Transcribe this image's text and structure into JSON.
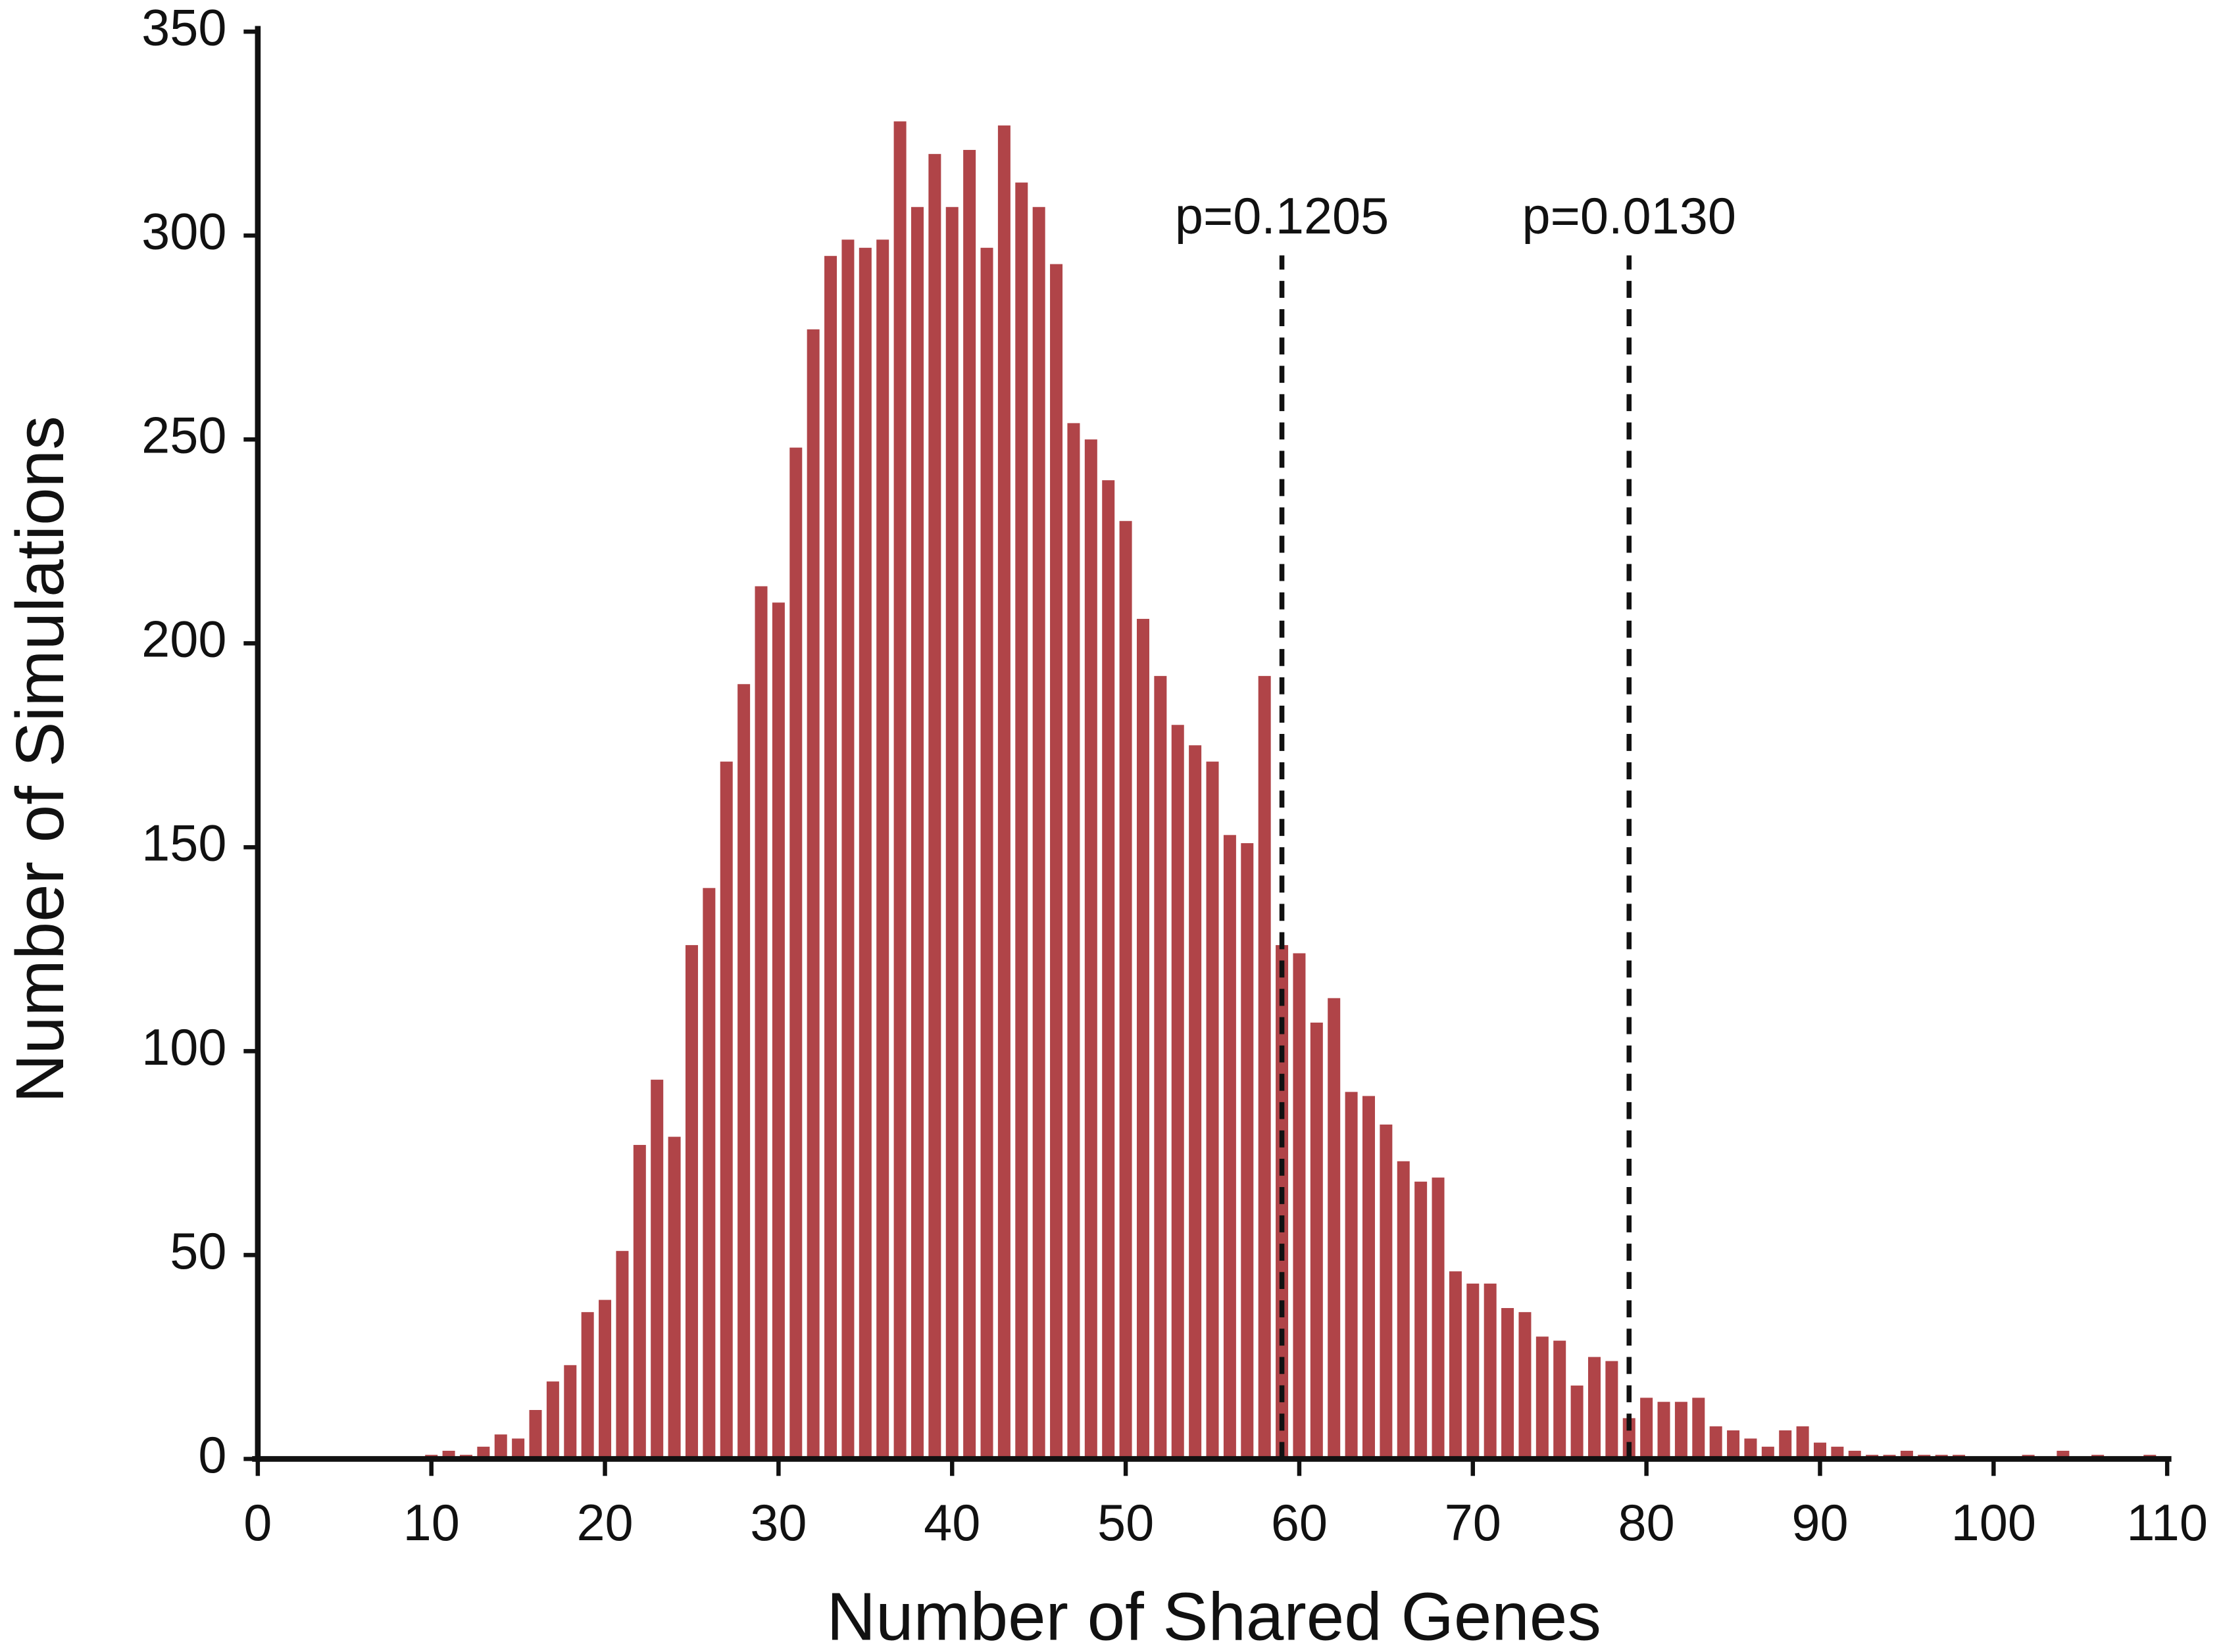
{
  "chart_data": {
    "type": "bar",
    "x_label": "Number of Shared Genes",
    "y_label": "Number of Simulations",
    "color": "#b04448",
    "x": [
      10,
      11,
      12,
      13,
      14,
      15,
      16,
      17,
      18,
      19,
      20,
      21,
      22,
      23,
      24,
      25,
      26,
      27,
      28,
      29,
      30,
      31,
      32,
      33,
      34,
      35,
      36,
      37,
      38,
      39,
      40,
      41,
      42,
      43,
      44,
      45,
      46,
      47,
      48,
      49,
      50,
      51,
      52,
      53,
      54,
      55,
      56,
      57,
      58,
      59,
      60,
      61,
      62,
      63,
      64,
      65,
      66,
      67,
      68,
      69,
      70,
      71,
      72,
      73,
      74,
      75,
      76,
      77,
      78,
      79,
      80,
      81,
      82,
      83,
      84,
      85,
      86,
      87,
      88,
      89,
      90,
      91,
      92,
      93,
      94,
      95,
      96,
      97,
      98,
      99,
      100,
      101,
      102,
      103,
      104,
      105,
      106,
      107,
      108,
      109
    ],
    "values": [
      1,
      2,
      1,
      3,
      6,
      5,
      12,
      19,
      23,
      36,
      39,
      51,
      77,
      93,
      79,
      126,
      140,
      171,
      190,
      214,
      210,
      248,
      277,
      295,
      299,
      297,
      299,
      328,
      307,
      320,
      307,
      321,
      297,
      327,
      313,
      307,
      293,
      254,
      250,
      240,
      230,
      206,
      192,
      180,
      175,
      171,
      153,
      151,
      192,
      126,
      124,
      107,
      113,
      90,
      89,
      82,
      73,
      68,
      69,
      46,
      43,
      43,
      37,
      36,
      30,
      29,
      18,
      25,
      24,
      10,
      15,
      14,
      14,
      15,
      8,
      7,
      5,
      3,
      7,
      8,
      4,
      3,
      2,
      1,
      1,
      2,
      1,
      1,
      1,
      0,
      0,
      0,
      1,
      0,
      2,
      0,
      1,
      0,
      0,
      1
    ],
    "xlim": [
      0,
      110
    ],
    "xticks": [
      0,
      10,
      20,
      30,
      40,
      50,
      60,
      70,
      80,
      90,
      100,
      110
    ],
    "ylim": [
      0,
      350
    ],
    "yticks": [
      0,
      50,
      100,
      150,
      200,
      250,
      300,
      350
    ],
    "annotations": [
      {
        "x": 59,
        "label": "p=0.1205"
      },
      {
        "x": 79,
        "label": "p=0.0130"
      }
    ]
  }
}
